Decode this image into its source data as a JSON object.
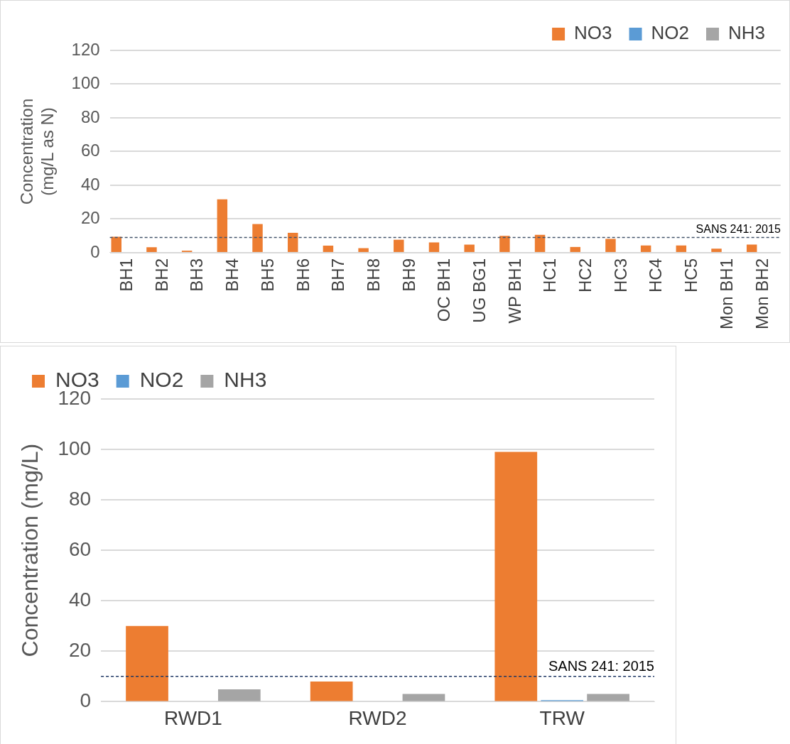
{
  "chart_data": [
    {
      "type": "bar",
      "ylabel": "Concentration (mg/L as N)",
      "categories": [
        "BH1",
        "BH2",
        "BH3",
        "BH4",
        "BH5",
        "BH6",
        "BH7",
        "BH8",
        "BH9",
        "OC BH1",
        "UG BG1",
        "WP BH1",
        "HC1",
        "HC2",
        "HC3",
        "HC4",
        "HC5",
        "Mon BH1",
        "Mon BH2"
      ],
      "series": [
        {
          "name": "NO3",
          "color": "#ed7d31",
          "values": [
            9.5,
            3.2,
            1.2,
            31.7,
            17,
            11.8,
            4.2,
            2.7,
            7.7,
            6.1,
            4.8,
            10,
            10.6,
            3.4,
            8.2,
            4.3,
            4.3,
            2.4,
            4.8
          ]
        },
        {
          "name": "NO2",
          "color": "#5b9bd5",
          "values": [
            0,
            0,
            0,
            0,
            0,
            0,
            0,
            0,
            0,
            0,
            0,
            0,
            0,
            0,
            0,
            0,
            0,
            0,
            0
          ]
        },
        {
          "name": "NH3",
          "color": "#a5a5a5",
          "values": [
            0,
            0,
            0,
            0,
            0,
            0,
            0,
            0,
            0,
            0,
            0,
            0,
            0,
            0,
            0,
            0,
            0,
            0,
            0
          ]
        }
      ],
      "ylim": [
        0,
        120
      ],
      "yticks": [
        0,
        20,
        40,
        60,
        80,
        100,
        120
      ],
      "grid": "y",
      "legend": "top right",
      "ref_lines": [
        {
          "axis": "y",
          "value": 9,
          "color": "#44546a",
          "line_style": "dashed"
        }
      ],
      "annotations": [
        {
          "text": "SANS 241: 2015",
          "y": 9
        }
      ]
    },
    {
      "type": "bar",
      "ylabel": "Concentration (mg/L)",
      "categories": [
        "RWD1",
        "RWD2",
        "TRW"
      ],
      "series": [
        {
          "name": "NO3",
          "color": "#ed7d31",
          "values": [
            30,
            8,
            99
          ]
        },
        {
          "name": "NO2",
          "color": "#5b9bd5",
          "values": [
            0,
            0,
            0.6
          ]
        },
        {
          "name": "NH3",
          "color": "#a5a5a5",
          "values": [
            4.9,
            3.1,
            3.1
          ]
        }
      ],
      "ylim": [
        0,
        120
      ],
      "yticks": [
        0,
        20,
        40,
        60,
        80,
        100,
        120
      ],
      "grid": "y",
      "legend": "top left",
      "ref_lines": [
        {
          "axis": "y",
          "value": 10,
          "color": "#1f3864",
          "line_style": "dashed"
        }
      ],
      "annotations": [
        {
          "text": "SANS 241: 2015",
          "y": 10
        }
      ]
    }
  ]
}
